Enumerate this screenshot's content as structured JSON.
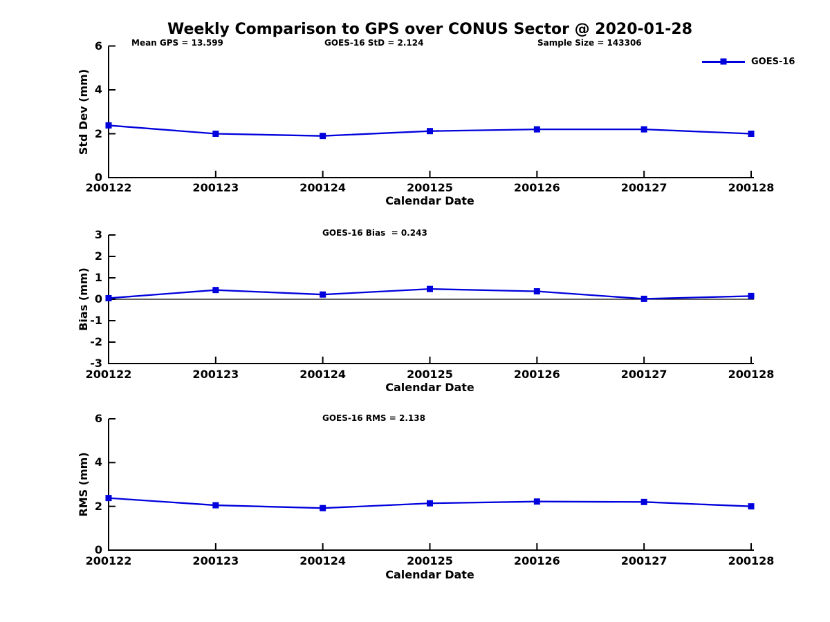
{
  "figure": {
    "title": "Weekly Comparison to GPS over CONUS Sector @ 2020-01-28",
    "annotations": {
      "mean_gps": "Mean GPS = 13.599",
      "std": "GOES-16 StD = 2.124",
      "sample_size": "Sample Size = 143306",
      "bias": "GOES-16 Bias  = 0.243",
      "rms": "GOES-16 RMS = 2.138"
    }
  },
  "legend": {
    "label": "GOES-16",
    "position": "top-right"
  },
  "colors": {
    "series": "#0000dd",
    "axis": "#000000",
    "text": "#000000",
    "background": "#ffffff"
  },
  "chart_data": [
    {
      "type": "line",
      "title": "",
      "xlabel": "Calendar Date",
      "ylabel": "Std Dev (mm)",
      "ylim": [
        0,
        6
      ],
      "yticks": [
        0,
        2,
        4,
        6
      ],
      "grid": false,
      "zero_line": false,
      "categories": [
        "200122",
        "200123",
        "200124",
        "200125",
        "200126",
        "200127",
        "200128"
      ],
      "series": [
        {
          "name": "GOES-16",
          "values": [
            2.38,
            2.0,
            1.9,
            2.12,
            2.2,
            2.2,
            2.0
          ]
        }
      ]
    },
    {
      "type": "line",
      "title": "",
      "xlabel": "Calendar Date",
      "ylabel": "Bias (mm)",
      "ylim": [
        -3,
        3
      ],
      "yticks": [
        -3,
        -2,
        -1,
        0,
        1,
        2,
        3
      ],
      "grid": false,
      "zero_line": true,
      "categories": [
        "200122",
        "200123",
        "200124",
        "200125",
        "200126",
        "200127",
        "200128"
      ],
      "series": [
        {
          "name": "GOES-16",
          "values": [
            0.05,
            0.43,
            0.22,
            0.48,
            0.37,
            0.02,
            0.15
          ]
        }
      ]
    },
    {
      "type": "line",
      "title": "",
      "xlabel": "Calendar Date",
      "ylabel": "RMS (mm)",
      "ylim": [
        0,
        6
      ],
      "yticks": [
        0,
        2,
        4,
        6
      ],
      "grid": false,
      "zero_line": false,
      "categories": [
        "200122",
        "200123",
        "200124",
        "200125",
        "200126",
        "200127",
        "200128"
      ],
      "series": [
        {
          "name": "GOES-16",
          "values": [
            2.38,
            2.05,
            1.92,
            2.14,
            2.22,
            2.2,
            2.0
          ]
        }
      ]
    }
  ]
}
